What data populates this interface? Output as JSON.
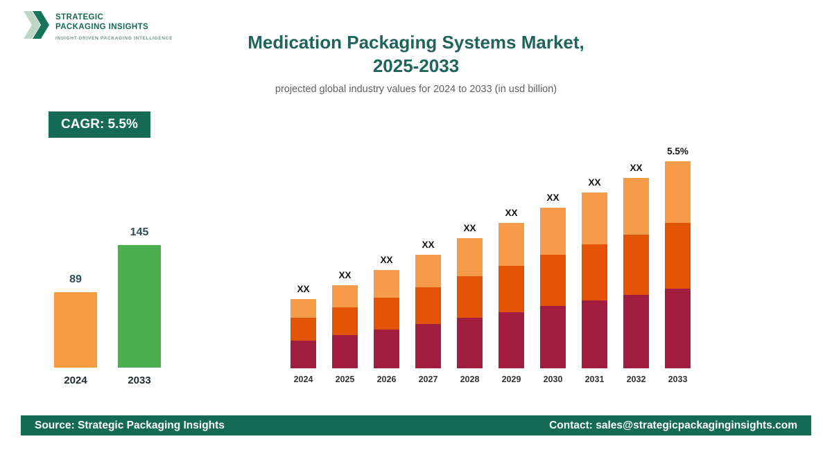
{
  "brand": {
    "logo_line1": "STRATEGIC",
    "logo_line2": "PACKAGING INSIGHTS",
    "tagline": "INSIGHT-DRIVEN PACKAGING INTELLIGENCE",
    "colors": {
      "dark_green": "#156a54",
      "light_chevron": "#bcd6c6",
      "dark_chevron": "#17735a"
    }
  },
  "header": {
    "title_line1": "Medication Packaging Systems Market,",
    "title_line2": "2025-2033",
    "subtitle": "projected global industry values for 2024 to 2033 (in usd billion)"
  },
  "badge": {
    "label": "CAGR: 5.5%"
  },
  "chart_data": [
    {
      "type": "bar",
      "name": "summary-comparison",
      "categories": [
        "2024",
        "2033"
      ],
      "values": [
        89,
        145
      ],
      "value_labels": [
        "89",
        "145"
      ],
      "colors": [
        "#f49a41",
        "#4cae4f"
      ],
      "ylabel": "",
      "xlabel": "",
      "ylim": [
        0,
        160
      ],
      "grid": false,
      "legend": false
    },
    {
      "type": "stacked-bar",
      "name": "yearly-projection",
      "categories": [
        "2024",
        "2025",
        "2026",
        "2027",
        "2028",
        "2029",
        "2030",
        "2031",
        "2032",
        "2033"
      ],
      "series": [
        {
          "name": "bottom",
          "color": "#a01d3f",
          "values": [
            40,
            48,
            56,
            64,
            73,
            81,
            90,
            98,
            106,
            115
          ]
        },
        {
          "name": "middle",
          "color": "#e35305",
          "values": [
            33,
            40,
            46,
            53,
            60,
            67,
            74,
            81,
            87,
            95
          ]
        },
        {
          "name": "top",
          "color": "#f59b4a",
          "values": [
            27,
            32,
            40,
            47,
            55,
            62,
            68,
            75,
            82,
            89
          ]
        }
      ],
      "bar_labels": [
        "XX",
        "XX",
        "XX",
        "XX",
        "XX",
        "XX",
        "XX",
        "XX",
        "XX",
        "5.5%"
      ],
      "ylim": [
        0,
        330
      ],
      "grid": false,
      "legend": false
    }
  ],
  "footer": {
    "source": "Source: Strategic Packaging Insights",
    "contact": "Contact: sales@strategicpackaginginsights.com"
  }
}
